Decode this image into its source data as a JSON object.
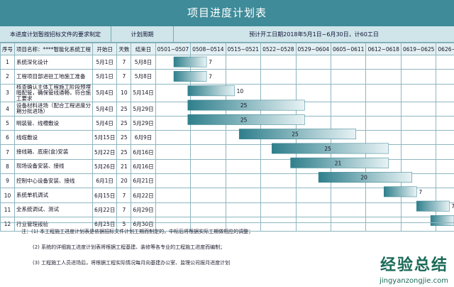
{
  "title": "项目进度计划表",
  "header": {
    "basis": "本进度计划暂按招标文件的要求制定",
    "cycle": "计划周期",
    "summary": "预计开工日期2018年5月1日~6月30日，计60工日"
  },
  "columns": {
    "no": "序号",
    "name": "项目名称：****智能化系统工程",
    "start": "开始日",
    "days": "天数",
    "end": "结束日",
    "weeks": [
      "0501~0507",
      "0508~0514",
      "0515~0521",
      "0522~0528",
      "0529~0604",
      "0605~0611",
      "0612~0618",
      "0619~0625",
      "0626~0630"
    ]
  },
  "chart_data": {
    "type": "gantt",
    "tasks": [
      {
        "no": "1",
        "name": "系统深化设计",
        "start": "5月1日",
        "days": "7",
        "end": "5月8日",
        "offset": 0,
        "duration": 7
      },
      {
        "no": "2",
        "name": "工程项目部进驻工地施工准备",
        "start": "5月1日",
        "days": "7",
        "end": "5月8日",
        "offset": 0,
        "duration": 7
      },
      {
        "no": "3",
        "name": "核查确认主体工程施工阶段预埋暗配管，确保管线通畅，符合施工要求",
        "start": "5月4日",
        "days": "10",
        "end": "5月14日",
        "offset": 3,
        "duration": 10
      },
      {
        "no": "4",
        "name": "设备材料进场（配合工程进度分期分批进场）",
        "start": "5月4日",
        "days": "25",
        "end": "5月29日",
        "offset": 3,
        "duration": 25
      },
      {
        "no": "5",
        "name": "明装管、线槽敷设",
        "start": "5月4日",
        "days": "25",
        "end": "5月29日",
        "offset": 3,
        "duration": 25
      },
      {
        "no": "6",
        "name": "线缆敷设",
        "start": "5月15日",
        "days": "25",
        "end": "6月9日",
        "offset": 14,
        "duration": 25
      },
      {
        "no": "7",
        "name": "接线箱、底座(盒)安装",
        "start": "5月22日",
        "days": "25",
        "end": "6月16日",
        "offset": 21,
        "duration": 25
      },
      {
        "no": "8",
        "name": "现场设备安装、接线",
        "start": "5月26日",
        "days": "21",
        "end": "6月16日",
        "offset": 25,
        "duration": 21
      },
      {
        "no": "9",
        "name": "控制中心设备安装、接线",
        "start": "6月1日",
        "days": "20",
        "end": "6月21日",
        "offset": 31,
        "duration": 20
      },
      {
        "no": "10",
        "name": "系统单机调试",
        "start": "6月15日",
        "days": "7",
        "end": "6月22日",
        "offset": 45,
        "duration": 7
      },
      {
        "no": "11",
        "name": "全系统调试、测试",
        "start": "6月22日",
        "days": "7",
        "end": "6月29日",
        "offset": 52,
        "duration": 7
      },
      {
        "no": "12",
        "name": "行业管理报验",
        "start": "6月25日",
        "days": "5",
        "end": "6月30日",
        "offset": 55,
        "duration": 5
      }
    ],
    "total_days": 60,
    "bar_color": "#2f7f8c"
  },
  "notes": {
    "n1": "注：(1) 本工程施工进度计划表是依据招标文件计划工期而制定的，中标后将根据实际工期做相应的调整；",
    "n2": "(2) 系统的详细施工进度计划表将根据工程基建、装修等各专业的工程施工进度而编制；",
    "n3": "(3) 工程施工人员进场后，将根据工程实际情况每月向基建办公室、监理公司报月进度计划"
  },
  "watermark": {
    "main": "经验总结",
    "url": "jingyanzongjie.com"
  }
}
